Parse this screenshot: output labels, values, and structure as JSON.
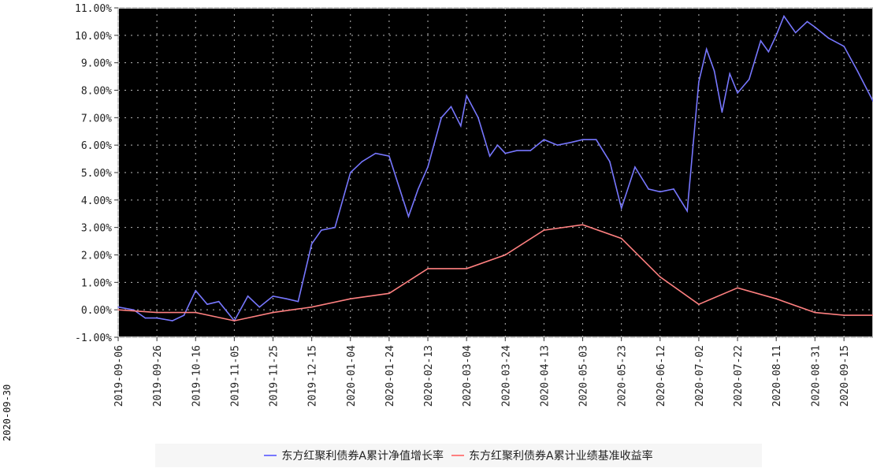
{
  "page_caption": "2020-09-30",
  "chart_data": {
    "type": "line",
    "title": "",
    "xlabel": "",
    "ylabel": "",
    "ylim": [
      -1.0,
      11.0
    ],
    "y_ticks": [
      "-1.00%",
      "0.00%",
      "1.00%",
      "2.00%",
      "3.00%",
      "4.00%",
      "5.00%",
      "6.00%",
      "7.00%",
      "8.00%",
      "9.00%",
      "10.00%",
      "11.00%"
    ],
    "x_ticks": [
      "2019-09-06",
      "2019-09-26",
      "2019-10-16",
      "2019-11-05",
      "2019-11-25",
      "2019-12-15",
      "2020-01-04",
      "2020-01-24",
      "2020-02-13",
      "2020-03-04",
      "2020-03-24",
      "2020-04-13",
      "2020-05-03",
      "2020-05-23",
      "2020-06-12",
      "2020-07-02",
      "2020-07-22",
      "2020-08-11",
      "2020-08-31",
      "2020-09-15"
    ],
    "x_range": [
      "2019-09-06",
      "2020-09-30"
    ],
    "grid": true,
    "legend_position": "bottom",
    "background": "#000000",
    "series": [
      {
        "name": "东方红聚利债券A累计净值增长率",
        "color": "#7777ff",
        "points": [
          [
            "2019-09-06",
            0.1
          ],
          [
            "2019-09-14",
            0.0
          ],
          [
            "2019-09-20",
            -0.3
          ],
          [
            "2019-09-26",
            -0.3
          ],
          [
            "2019-10-04",
            -0.4
          ],
          [
            "2019-10-10",
            -0.2
          ],
          [
            "2019-10-16",
            0.7
          ],
          [
            "2019-10-22",
            0.2
          ],
          [
            "2019-10-28",
            0.3
          ],
          [
            "2019-11-05",
            -0.4
          ],
          [
            "2019-11-12",
            0.5
          ],
          [
            "2019-11-18",
            0.1
          ],
          [
            "2019-11-25",
            0.5
          ],
          [
            "2019-12-02",
            0.4
          ],
          [
            "2019-12-08",
            0.3
          ],
          [
            "2019-12-15",
            2.4
          ],
          [
            "2019-12-20",
            2.9
          ],
          [
            "2019-12-27",
            3.0
          ],
          [
            "2020-01-04",
            5.0
          ],
          [
            "2020-01-10",
            5.4
          ],
          [
            "2020-01-17",
            5.7
          ],
          [
            "2020-01-24",
            5.6
          ],
          [
            "2020-02-03",
            3.4
          ],
          [
            "2020-02-08",
            4.4
          ],
          [
            "2020-02-13",
            5.2
          ],
          [
            "2020-02-20",
            7.0
          ],
          [
            "2020-02-25",
            7.4
          ],
          [
            "2020-03-01",
            6.7
          ],
          [
            "2020-03-04",
            7.8
          ],
          [
            "2020-03-10",
            7.0
          ],
          [
            "2020-03-16",
            5.6
          ],
          [
            "2020-03-20",
            6.0
          ],
          [
            "2020-03-24",
            5.7
          ],
          [
            "2020-03-30",
            5.8
          ],
          [
            "2020-04-06",
            5.8
          ],
          [
            "2020-04-13",
            6.2
          ],
          [
            "2020-04-20",
            6.0
          ],
          [
            "2020-04-27",
            6.1
          ],
          [
            "2020-05-03",
            6.2
          ],
          [
            "2020-05-10",
            6.2
          ],
          [
            "2020-05-17",
            5.4
          ],
          [
            "2020-05-23",
            3.7
          ],
          [
            "2020-05-30",
            5.2
          ],
          [
            "2020-06-06",
            4.4
          ],
          [
            "2020-06-12",
            4.3
          ],
          [
            "2020-06-19",
            4.4
          ],
          [
            "2020-06-26",
            3.6
          ],
          [
            "2020-07-02",
            8.3
          ],
          [
            "2020-07-06",
            9.5
          ],
          [
            "2020-07-10",
            8.7
          ],
          [
            "2020-07-14",
            7.2
          ],
          [
            "2020-07-18",
            8.6
          ],
          [
            "2020-07-22",
            7.9
          ],
          [
            "2020-07-28",
            8.4
          ],
          [
            "2020-08-03",
            9.8
          ],
          [
            "2020-08-07",
            9.4
          ],
          [
            "2020-08-11",
            10.0
          ],
          [
            "2020-08-15",
            10.7
          ],
          [
            "2020-08-21",
            10.1
          ],
          [
            "2020-08-27",
            10.5
          ],
          [
            "2020-08-31",
            10.3
          ],
          [
            "2020-09-07",
            9.9
          ],
          [
            "2020-09-15",
            9.6
          ],
          [
            "2020-09-22",
            8.7
          ],
          [
            "2020-09-30",
            7.6
          ]
        ]
      },
      {
        "name": "东方红聚利债券A累计业绩基准收益率",
        "color": "#ff8080",
        "points": [
          [
            "2019-09-06",
            0.0
          ],
          [
            "2019-09-26",
            -0.1
          ],
          [
            "2019-10-16",
            -0.1
          ],
          [
            "2019-11-05",
            -0.4
          ],
          [
            "2019-11-25",
            -0.1
          ],
          [
            "2019-12-15",
            0.1
          ],
          [
            "2020-01-04",
            0.4
          ],
          [
            "2020-01-24",
            0.6
          ],
          [
            "2020-02-13",
            1.5
          ],
          [
            "2020-03-04",
            1.5
          ],
          [
            "2020-03-24",
            2.0
          ],
          [
            "2020-04-13",
            2.9
          ],
          [
            "2020-05-03",
            3.1
          ],
          [
            "2020-05-23",
            2.6
          ],
          [
            "2020-06-12",
            1.2
          ],
          [
            "2020-07-02",
            0.2
          ],
          [
            "2020-07-22",
            0.8
          ],
          [
            "2020-08-11",
            0.4
          ],
          [
            "2020-08-31",
            -0.1
          ],
          [
            "2020-09-15",
            -0.2
          ],
          [
            "2020-09-30",
            -0.2
          ]
        ]
      }
    ]
  }
}
